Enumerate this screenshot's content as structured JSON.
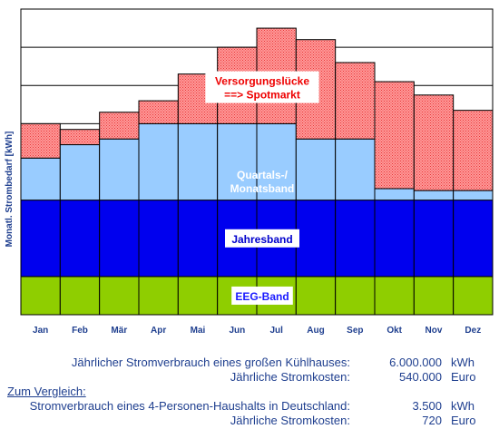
{
  "chart_data": {
    "type": "bar",
    "stacked": true,
    "ylabel": "Monatl. Strombedarf [kWh]",
    "categories": [
      "Jan",
      "Feb",
      "Mär",
      "Apr",
      "Mai",
      "Jun",
      "Jul",
      "Aug",
      "Sep",
      "Okt",
      "Nov",
      "Dez"
    ],
    "ylim": [
      0,
      8
    ],
    "grid": true,
    "series": [
      {
        "name": "EEG-Band",
        "color": "#8fce00",
        "values": [
          1,
          1,
          1,
          1,
          1,
          1,
          1,
          1,
          1,
          1,
          1,
          1
        ]
      },
      {
        "name": "Jahresband",
        "color": "#0000ee",
        "values": [
          2,
          2,
          2,
          2,
          2,
          2,
          2,
          2,
          2,
          2,
          2,
          2
        ]
      },
      {
        "name": "Quartals-/ Monatsband",
        "color": "#99ccff",
        "values": [
          1.1,
          1.45,
          1.6,
          2.0,
          2.0,
          2.0,
          2.0,
          1.6,
          1.6,
          0.3,
          0.25,
          0.25
        ]
      },
      {
        "name": "Versorgungslücke ==> Spotmarkt",
        "color": "#ff9999",
        "values": [
          0.9,
          0.4,
          0.7,
          0.6,
          1.3,
          2.0,
          2.5,
          2.6,
          2.0,
          2.8,
          2.5,
          2.1
        ]
      }
    ],
    "band_labels": [
      {
        "lines": [
          "EEG-Band"
        ],
        "color": "#1a1aff",
        "bg": "#ffffff"
      },
      {
        "lines": [
          "Jahresband"
        ],
        "color": "#0000cc",
        "bg": "#ffffff"
      },
      {
        "lines": [
          "Quartals-/",
          "Monatsband"
        ],
        "color": "#ffffff",
        "bg": ""
      },
      {
        "lines": [
          "Versorgungslücke",
          "==> Spotmarkt"
        ],
        "color": "#ee0000",
        "bg": "#ffffff"
      }
    ]
  },
  "info": {
    "row1": {
      "label": "Jährlicher Stromverbrauch  eines großen Kühlhauses:",
      "value": "6.000.000",
      "unit": "kWh"
    },
    "row2": {
      "label": "Jährliche Stromkosten:",
      "value": "540.000",
      "unit": "Euro"
    },
    "heading": "Zum Vergleich:",
    "row3": {
      "label": "Stromverbrauch eines 4-Personen-Haushalts in Deutschland:",
      "value": "3.500",
      "unit": "kWh"
    },
    "row4": {
      "label": "Jährliche Stromkosten:",
      "value": "720",
      "unit": "Euro"
    }
  }
}
